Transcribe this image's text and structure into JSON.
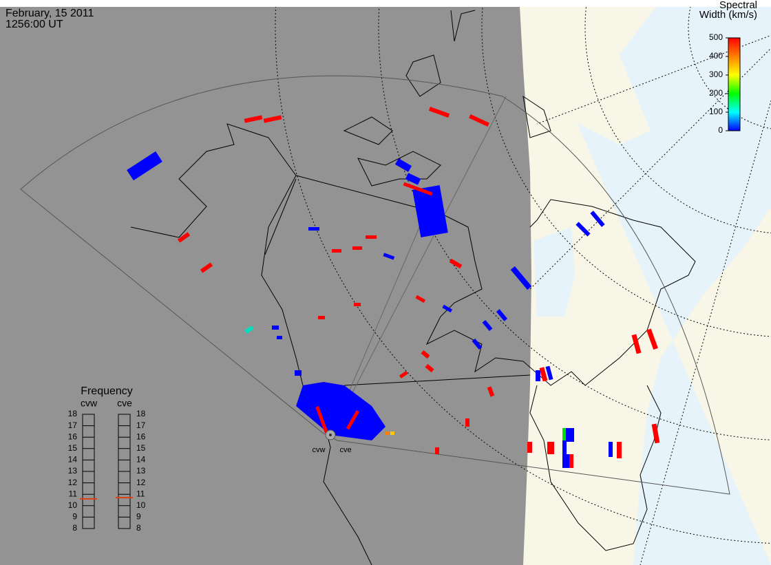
{
  "header": {
    "date": "February, 15 2011",
    "time": "1256:00 UT"
  },
  "colorbar": {
    "title_lines": [
      "Spectral",
      "Width (km/s)"
    ],
    "range": [
      0,
      500
    ],
    "ticks": [
      0,
      100,
      200,
      300,
      400,
      500
    ],
    "colors": [
      "#0000ff",
      "#00ffff",
      "#00ff00",
      "#ffff00",
      "#ff8000",
      "#ff0000"
    ]
  },
  "frequency": {
    "title": "Frequency",
    "range": [
      8,
      18
    ],
    "ticks": [
      8,
      9,
      10,
      11,
      12,
      13,
      14,
      15,
      16,
      17,
      18
    ],
    "radars": [
      {
        "name": "cvw",
        "value": 10.6
      },
      {
        "name": "cve",
        "value": 10.7
      }
    ]
  },
  "stations": [
    "cvw",
    "cve"
  ]
}
